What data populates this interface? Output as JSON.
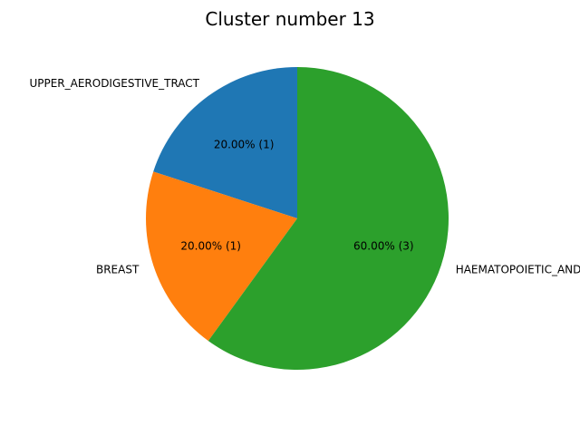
{
  "chart_data": {
    "type": "pie",
    "title": "Cluster number 13",
    "slices": [
      {
        "label": "UPPER_AERODIGESTIVE_TRACT",
        "value": 1,
        "percent_label": "20.00%  (1)",
        "color": "#1f77b4"
      },
      {
        "label": "BREAST",
        "value": 1,
        "percent_label": "20.00%  (1)",
        "color": "#ff7f0e"
      },
      {
        "label": "HAEMATOPOIETIC_AND_LYMPHOID_TISSUE",
        "value": 3,
        "percent_label": "60.00%  (3)",
        "color": "#2ca02c"
      }
    ],
    "start_angle_deg": 90,
    "direction": "counterclockwise"
  }
}
